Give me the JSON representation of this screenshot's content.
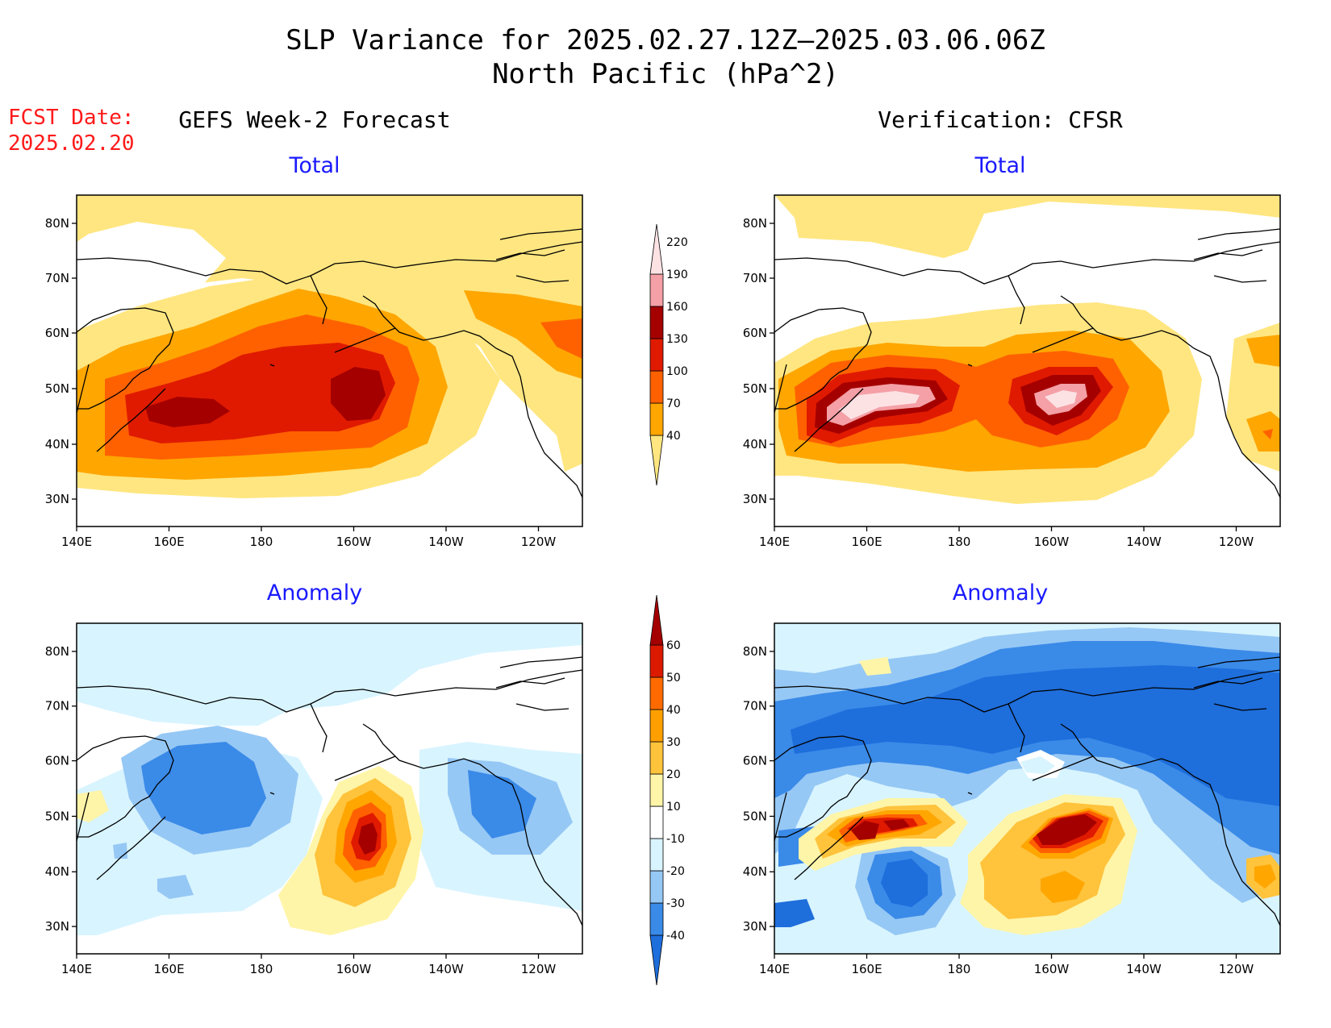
{
  "header": {
    "title_line1": "SLP Variance for 2025.02.27.12Z–2025.03.06.06Z",
    "title_line2": "North Pacific (hPa^2)"
  },
  "fcst": {
    "label": "FCST Date:",
    "date": "2025.02.20"
  },
  "columns": {
    "left": "GEFS Week-2 Forecast",
    "right": "Verification: CFSR"
  },
  "panels": {
    "tl": "Total",
    "tr": "Total",
    "bl": "Anomaly",
    "br": "Anomaly"
  },
  "axes": {
    "lon_labels": [
      "140E",
      "160E",
      "180",
      "160W",
      "140W",
      "120W"
    ],
    "lat_labels": [
      "30N",
      "40N",
      "50N",
      "60N",
      "70N",
      "80N"
    ]
  },
  "colorbars": {
    "total": {
      "levels": [
        "40",
        "70",
        "100",
        "130",
        "160",
        "190",
        "220"
      ],
      "colors": [
        "#ffe680",
        "#ffa600",
        "#ff6100",
        "#e01a00",
        "#a50000",
        "#f4a0a6",
        "#fde2e4"
      ]
    },
    "anomaly": {
      "levels": [
        "-40",
        "-30",
        "-20",
        "-10",
        "10",
        "20",
        "30",
        "40",
        "50",
        "60"
      ],
      "colors": [
        "#1e6edc",
        "#3a8ae8",
        "#96c8f5",
        "#d8f4ff",
        "#ffffff",
        "#fff5a8",
        "#ffc33c",
        "#ffa000",
        "#ff6a00",
        "#dc1a00",
        "#a50000"
      ]
    }
  },
  "map_colors": {
    "yellow": "#ffe680",
    "orange": "#ffa600",
    "dorange": "#ff6100",
    "red": "#e01a00",
    "dred": "#a50000",
    "pink": "#f4a0a6",
    "lpink": "#fde2e4",
    "cyan": "#d8f4ff",
    "lblue": "#96c8f5",
    "mblue": "#3a8ae8",
    "dblue": "#1e6edc",
    "pyellow": "#fff5a8",
    "lorange": "#ffc33c"
  }
}
